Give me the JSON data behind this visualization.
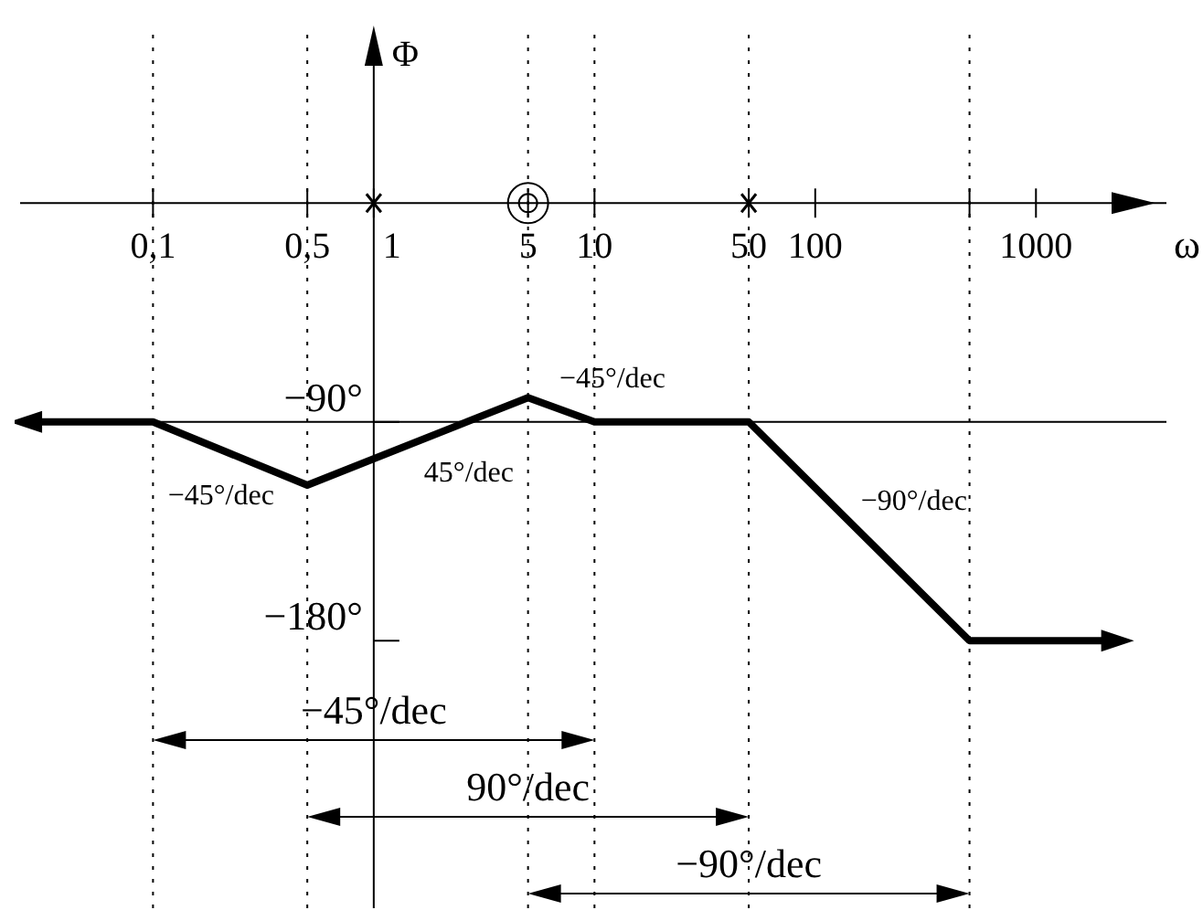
{
  "chart_data": {
    "type": "line",
    "xlabel": "ω",
    "ylabel": "Φ",
    "log": "x",
    "marker": "none",
    "line_style": "solid",
    "xlim": [
      0.025,
      3900
    ],
    "ylim": [
      -290,
      70
    ],
    "xticks": [
      {
        "value": 0.1,
        "label": "0,1"
      },
      {
        "value": 0.5,
        "label": "0,5"
      },
      1,
      5,
      10,
      50,
      100,
      {
        "value": 500,
        "label": null
      },
      1000
    ],
    "yticks": [
      {
        "value": -90,
        "label": "−90°"
      },
      {
        "value": -180,
        "label": "−180°"
      }
    ],
    "series": [
      {
        "color": "#000000",
        "x": [
          0.027,
          0.1,
          0.5,
          5,
          10,
          50,
          500,
          2300
        ],
        "values": [
          -90,
          -90,
          -116,
          -80,
          -90,
          -90,
          -180,
          -180
        ]
      },
      {
        "type": "scatter",
        "marker": "cross",
        "color": "#000000",
        "x": [
          1,
          50
        ],
        "values": [
          0,
          0
        ]
      },
      {
        "type": "scatter",
        "marker": "circle",
        "color": "#000000",
        "x": [
          5
        ],
        "values": [
          0
        ]
      }
    ],
    "ref_lines": [
      {
        "axis": "y",
        "value": -90,
        "color": "#000000",
        "line_style": "solid"
      },
      {
        "axis": "x",
        "value": 0.1,
        "color": "#000000",
        "line_style": "dotted"
      },
      {
        "axis": "x",
        "value": 0.5,
        "color": "#000000",
        "line_style": "dotted"
      },
      {
        "axis": "x",
        "value": 5,
        "color": "#000000",
        "line_style": "dotted"
      },
      {
        "axis": "x",
        "value": 10,
        "color": "#000000",
        "line_style": "dotted"
      },
      {
        "axis": "x",
        "value": 50,
        "color": "#000000",
        "line_style": "dotted"
      },
      {
        "axis": "x",
        "value": 500,
        "color": "#000000",
        "line_style": "dotted"
      }
    ],
    "annotations": [
      "−45°/dec",
      "45°/dec",
      "−45°/dec",
      "−90°/dec",
      "−45°/dec",
      "90°/dec",
      "−90°/dec"
    ]
  }
}
